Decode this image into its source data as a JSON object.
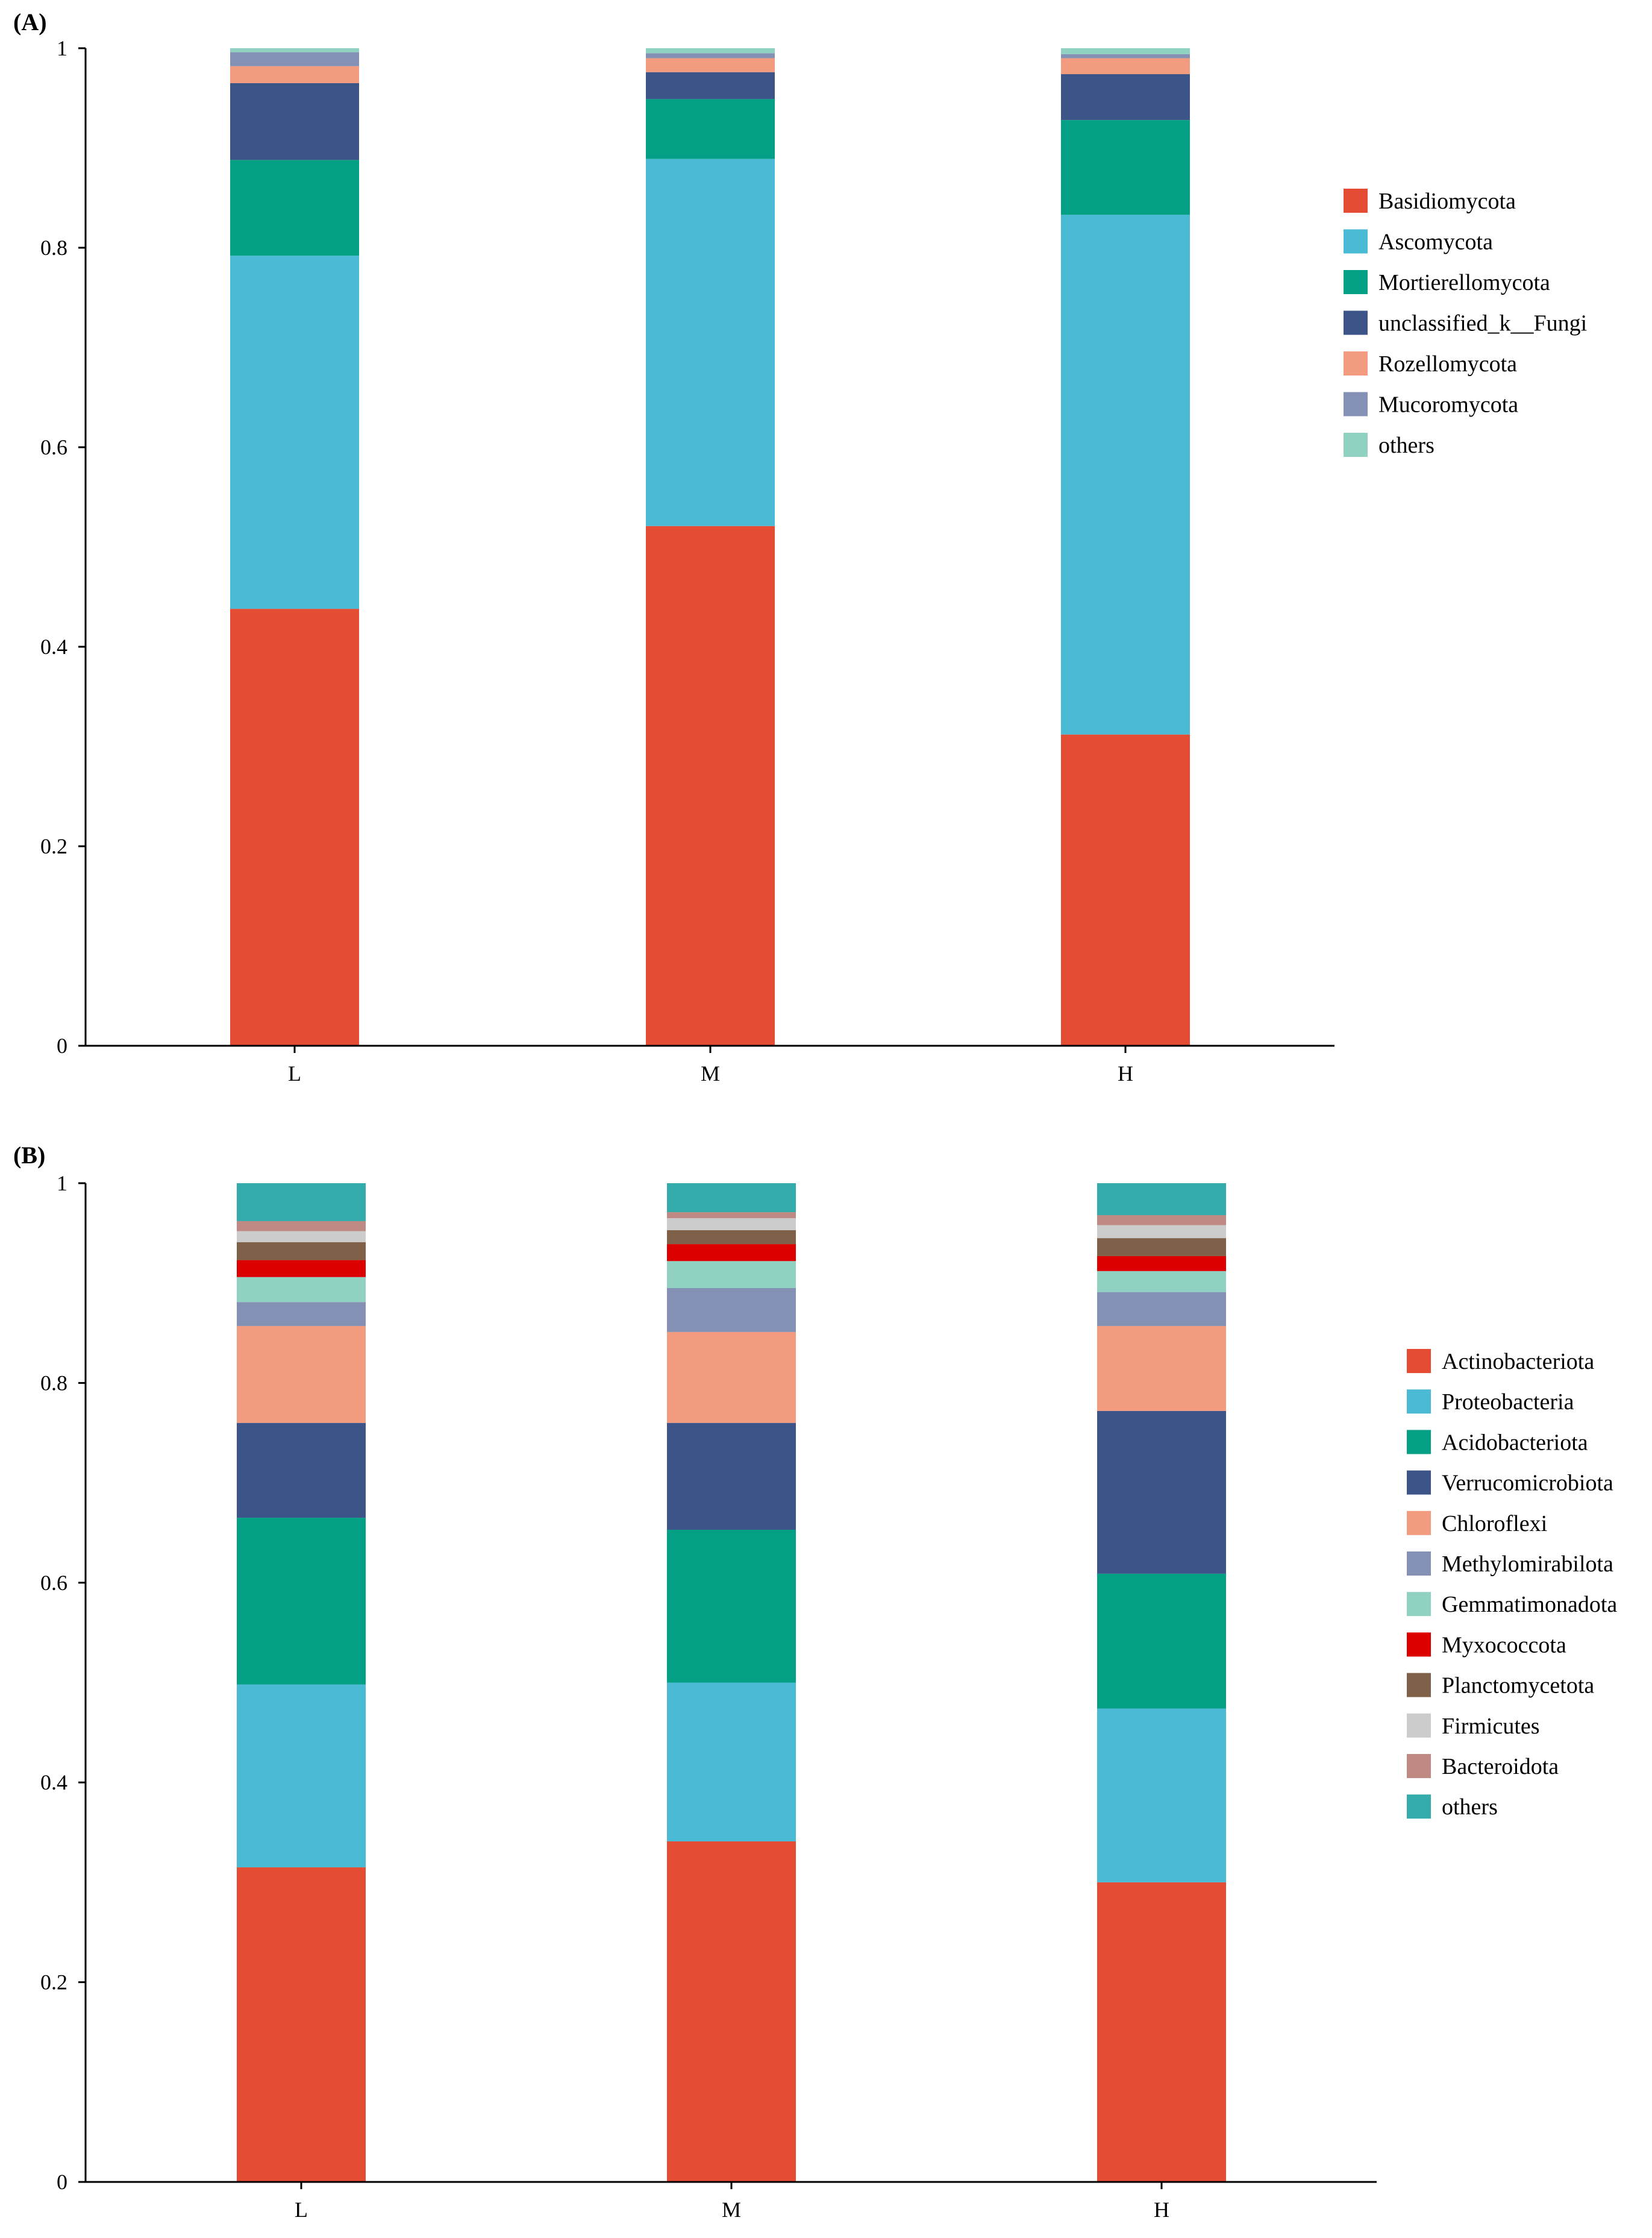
{
  "chart_data": [
    {
      "type": "bar",
      "stacked": true,
      "panel_label": "(A)",
      "categories": [
        "L",
        "M",
        "H"
      ],
      "ylim": [
        0,
        1
      ],
      "yticks": [
        "0",
        "0.2",
        "0.4",
        "0.6",
        "0.8",
        "1"
      ],
      "legend_position": "right",
      "series": [
        {
          "name": "Basidiomycota",
          "color": "#e44c34",
          "values": [
            0.438,
            0.521,
            0.312
          ]
        },
        {
          "name": "Ascomycota",
          "color": "#4bbad5",
          "values": [
            0.354,
            0.368,
            0.521
          ]
        },
        {
          "name": "Mortierellomycota",
          "color": "#03a086",
          "values": [
            0.096,
            0.06,
            0.095
          ]
        },
        {
          "name": "unclassified_k__Fungi",
          "color": "#3c5488",
          "values": [
            0.077,
            0.027,
            0.046
          ]
        },
        {
          "name": "Rozellomycota",
          "color": "#f29b7f",
          "values": [
            0.017,
            0.014,
            0.016
          ]
        },
        {
          "name": "Mucoromycota",
          "color": "#8491b5",
          "values": [
            0.014,
            0.005,
            0.004
          ]
        },
        {
          "name": "others",
          "color": "#91d1c2",
          "values": [
            0.004,
            0.005,
            0.006
          ]
        }
      ]
    },
    {
      "type": "bar",
      "stacked": true,
      "panel_label": "(B)",
      "categories": [
        "L",
        "M",
        "H"
      ],
      "ylim": [
        0,
        1
      ],
      "yticks": [
        "0",
        "0.2",
        "0.4",
        "0.6",
        "0.8",
        "1"
      ],
      "legend_position": "right",
      "series": [
        {
          "name": "Actinobacteriota",
          "color": "#e44c34",
          "values": [
            0.315,
            0.341,
            0.3
          ]
        },
        {
          "name": "Proteobacteria",
          "color": "#4bbad5",
          "values": [
            0.183,
            0.159,
            0.174
          ]
        },
        {
          "name": "Acidobacteriota",
          "color": "#03a086",
          "values": [
            0.167,
            0.153,
            0.135
          ]
        },
        {
          "name": "Verrucomicrobiota",
          "color": "#3c5488",
          "values": [
            0.095,
            0.107,
            0.163
          ]
        },
        {
          "name": "Chloroflexi",
          "color": "#f29b7f",
          "values": [
            0.097,
            0.091,
            0.085
          ]
        },
        {
          "name": "Methylomirabilota",
          "color": "#8491b5",
          "values": [
            0.024,
            0.044,
            0.034
          ]
        },
        {
          "name": "Gemmatimonadota",
          "color": "#91d1c2",
          "values": [
            0.025,
            0.027,
            0.021
          ]
        },
        {
          "name": "Myxococcota",
          "color": "#dc0000",
          "values": [
            0.017,
            0.017,
            0.015
          ]
        },
        {
          "name": "Planctomycetota",
          "color": "#7e6148",
          "values": [
            0.018,
            0.014,
            0.018
          ]
        },
        {
          "name": "Firmicutes",
          "color": "#cccccc",
          "values": [
            0.011,
            0.012,
            0.013
          ]
        },
        {
          "name": "Bacteroidota",
          "color": "#c08a84",
          "values": [
            0.01,
            0.006,
            0.01
          ]
        },
        {
          "name": "others",
          "color": "#35acac",
          "values": [
            0.038,
            0.029,
            0.032
          ]
        }
      ]
    }
  ]
}
